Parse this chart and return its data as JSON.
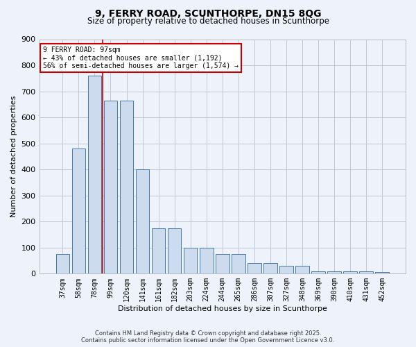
{
  "title_line1": "9, FERRY ROAD, SCUNTHORPE, DN15 8QG",
  "title_line2": "Size of property relative to detached houses in Scunthorpe",
  "xlabel": "Distribution of detached houses by size in Scunthorpe",
  "ylabel": "Number of detached properties",
  "bar_labels": [
    "37sqm",
    "58sqm",
    "78sqm",
    "99sqm",
    "120sqm",
    "141sqm",
    "161sqm",
    "182sqm",
    "203sqm",
    "224sqm",
    "244sqm",
    "265sqm",
    "286sqm",
    "307sqm",
    "327sqm",
    "348sqm",
    "369sqm",
    "390sqm",
    "410sqm",
    "431sqm",
    "452sqm"
  ],
  "bar_values": [
    75,
    480,
    760,
    665,
    665,
    400,
    175,
    175,
    100,
    100,
    75,
    75,
    42,
    42,
    30,
    30,
    10,
    10,
    8,
    8,
    7
  ],
  "bar_color": "#ccdcee",
  "bar_edge_color": "#4477aa",
  "annotation_text": "9 FERRY ROAD: 97sqm\n← 43% of detached houses are smaller (1,192)\n56% of semi-detached houses are larger (1,574) →",
  "red_line_x": 2.5,
  "annotation_box_color": "#ffffff",
  "annotation_box_edge": "#cc0000",
  "red_line_color": "#cc0000",
  "footer_line1": "Contains HM Land Registry data © Crown copyright and database right 2025.",
  "footer_line2": "Contains public sector information licensed under the Open Government Licence v3.0.",
  "bg_color": "#eef2fa",
  "grid_color": "#c0c8d8",
  "ylim": [
    0,
    900
  ],
  "yticks": [
    0,
    100,
    200,
    300,
    400,
    500,
    600,
    700,
    800,
    900
  ]
}
